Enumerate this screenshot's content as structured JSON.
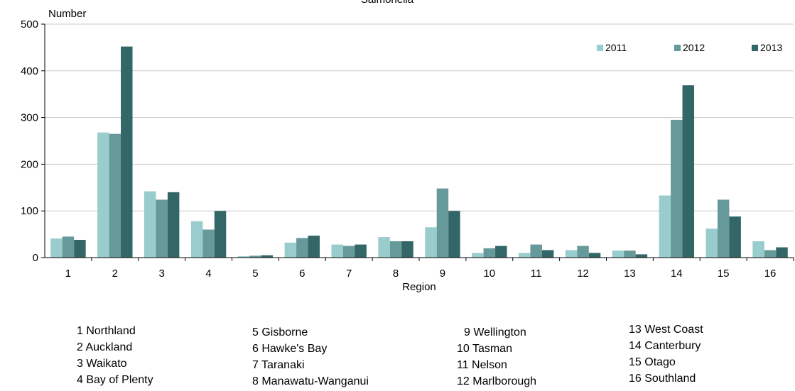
{
  "chart_data": {
    "type": "bar",
    "title": "Salmonella",
    "ylabel": "Number",
    "xlabel": "Region",
    "ylim": [
      0,
      500
    ],
    "yticks": [
      0,
      100,
      200,
      300,
      400,
      500
    ],
    "grid": true,
    "legend_position": "top-right",
    "categories": [
      "1",
      "2",
      "3",
      "4",
      "5",
      "6",
      "7",
      "8",
      "9",
      "10",
      "11",
      "12",
      "13",
      "14",
      "15",
      "16"
    ],
    "series": [
      {
        "name": "2011",
        "color": "#99cdcd",
        "values": [
          41,
          268,
          142,
          78,
          3,
          32,
          28,
          44,
          65,
          10,
          10,
          16,
          15,
          133,
          62,
          35
        ]
      },
      {
        "name": "2012",
        "color": "#669999",
        "values": [
          45,
          265,
          124,
          60,
          4,
          42,
          25,
          35,
          148,
          20,
          28,
          25,
          15,
          295,
          124,
          16
        ]
      },
      {
        "name": "2013",
        "color": "#336666",
        "values": [
          38,
          452,
          140,
          100,
          5,
          47,
          28,
          35,
          100,
          25,
          16,
          10,
          7,
          369,
          88,
          22
        ]
      }
    ]
  },
  "region_key": [
    [
      "1 Northland",
      "2 Auckland",
      "3 Waikato",
      "4 Bay of Plenty"
    ],
    [
      "5 Gisborne",
      "6 Hawke's Bay",
      "7 Taranaki",
      "8 Manawatu-Wanganui"
    ],
    [
      "9 Wellington",
      "10 Tasman",
      "11 Nelson",
      "12 Marlborough"
    ],
    [
      "13 West Coast",
      "14 Canterbury",
      "15 Otago",
      "16 Southland"
    ]
  ]
}
